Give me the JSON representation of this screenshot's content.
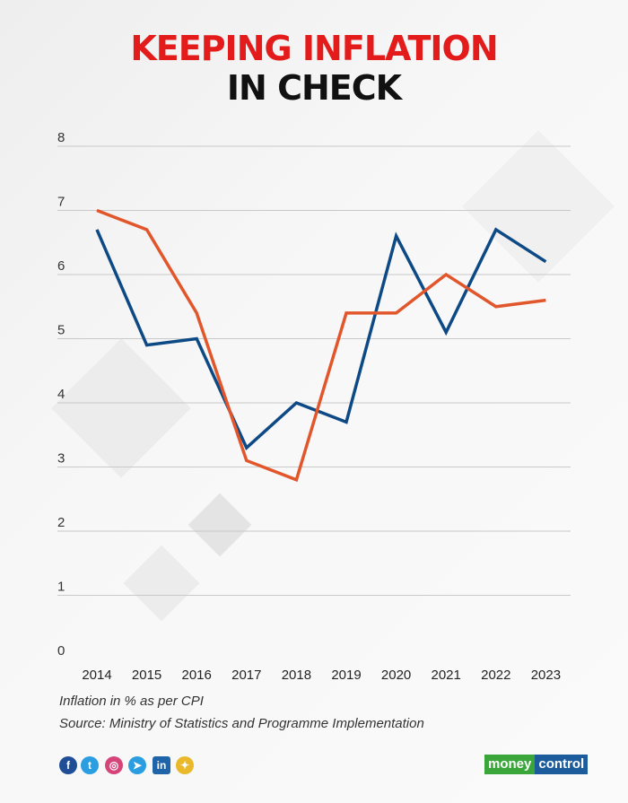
{
  "title": {
    "line1": "KEEPING INFLATION",
    "line2": "IN CHECK"
  },
  "notes": {
    "unit": "Inflation in % as per CPI",
    "source": "Source: Ministry of Statistics and Programme Implementation"
  },
  "footer": {
    "social_icons": [
      "facebook-icon",
      "twitter-icon",
      "instagram-icon",
      "telegram-icon",
      "linkedin-icon",
      "snapchat-icon"
    ],
    "logo_part1": "money",
    "logo_part2": "control"
  },
  "chart_data": {
    "type": "line",
    "title": "KEEPING INFLATION IN CHECK",
    "xlabel": "",
    "ylabel": "",
    "categories": [
      "2014",
      "2015",
      "2016",
      "2017",
      "2018",
      "2019",
      "2020",
      "2021",
      "2022",
      "2023"
    ],
    "ylim": [
      0,
      8
    ],
    "yticks": [
      0,
      1,
      2,
      3,
      4,
      5,
      6,
      7,
      8
    ],
    "grid": true,
    "series": [
      {
        "color": "#0d4a85",
        "values": [
          6.7,
          4.9,
          5.0,
          3.3,
          4.0,
          3.7,
          6.6,
          5.1,
          6.7,
          6.2
        ]
      },
      {
        "color": "#e2562c",
        "values": [
          7.0,
          6.7,
          5.4,
          3.1,
          2.8,
          5.4,
          5.4,
          6.0,
          5.5,
          5.6
        ]
      }
    ]
  }
}
